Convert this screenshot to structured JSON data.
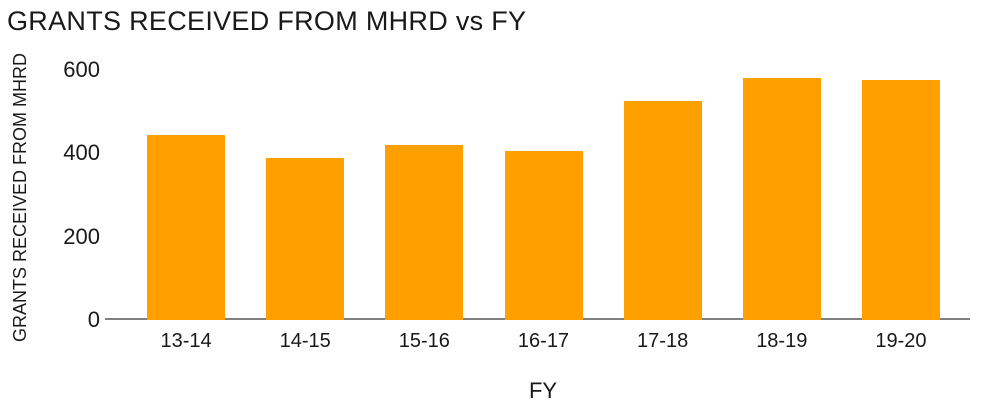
{
  "chart_data": {
    "type": "bar",
    "title": "GRANTS RECEIVED FROM MHRD vs FY",
    "xlabel": "FY",
    "ylabel": "GRANTS RECEIVED FROM MHRD",
    "categories": [
      "13-14",
      "14-15",
      "15-16",
      "16-17",
      "17-18",
      "18-19",
      "19-20"
    ],
    "values": [
      445,
      390,
      420,
      405,
      525,
      580,
      575
    ],
    "ylim": [
      0,
      600
    ],
    "yticks": [
      0,
      200,
      400,
      600
    ],
    "grid": false,
    "legend": "none",
    "bar_color": "#FFA000",
    "axis_line_color": "#808080",
    "text_color": "#191919",
    "background_color": "#ffffff"
  }
}
